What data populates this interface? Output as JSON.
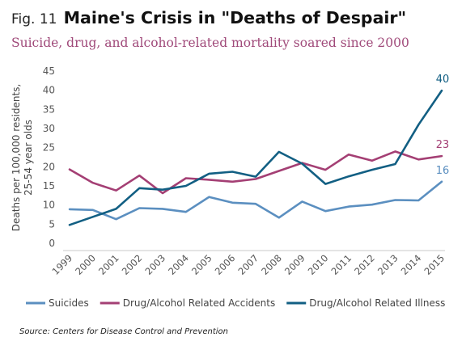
{
  "header": {
    "fig_label": "Fig. 11",
    "title": "Maine's Crisis in \"Deaths of Despair\"",
    "subtitle": "Suicide, drug, and alcohol-related mortality soared since 2000"
  },
  "source": "Source: Centers for Disease Control and Prevention",
  "chart_data": {
    "type": "line",
    "ylabel": "Deaths per 100,000 residents,\n25-54 year olds",
    "ylim": [
      0,
      45
    ],
    "yticks": [
      "0",
      "5",
      "10",
      "15",
      "20",
      "25",
      "30",
      "35",
      "40",
      "45"
    ],
    "categories": [
      "1999",
      "2000",
      "2001",
      "2002",
      "2003",
      "2004",
      "2005",
      "2006",
      "2007",
      "2008",
      "2009",
      "2010",
      "2011",
      "2012",
      "2013",
      "2014",
      "2015"
    ],
    "legend_position": "bottom",
    "grid": false,
    "series": [
      {
        "name": "Suicides",
        "color": "#5b8fc0",
        "values": [
          8.9,
          8.7,
          6.3,
          9.2,
          9.0,
          8.2,
          12.1,
          10.6,
          10.3,
          6.7,
          10.9,
          8.4,
          9.6,
          10.1,
          11.3,
          11.2,
          16.1
        ],
        "end_label": "16"
      },
      {
        "name": "Drug/Alcohol Related Accidents",
        "color": "#a43f74",
        "values": [
          19.3,
          15.8,
          13.8,
          17.7,
          13.1,
          17.0,
          16.6,
          16.1,
          16.8,
          18.9,
          21.0,
          19.2,
          23.2,
          21.6,
          24.0,
          21.9,
          22.8
        ],
        "end_label": "23"
      },
      {
        "name": "Drug/Alcohol Related Illness",
        "color": "#125f83",
        "values": [
          4.8,
          6.9,
          9.0,
          14.4,
          14.0,
          15.0,
          18.2,
          18.7,
          17.4,
          23.9,
          20.8,
          15.5,
          17.5,
          19.2,
          20.7,
          31.0,
          39.9
        ],
        "end_label": "40"
      }
    ]
  }
}
